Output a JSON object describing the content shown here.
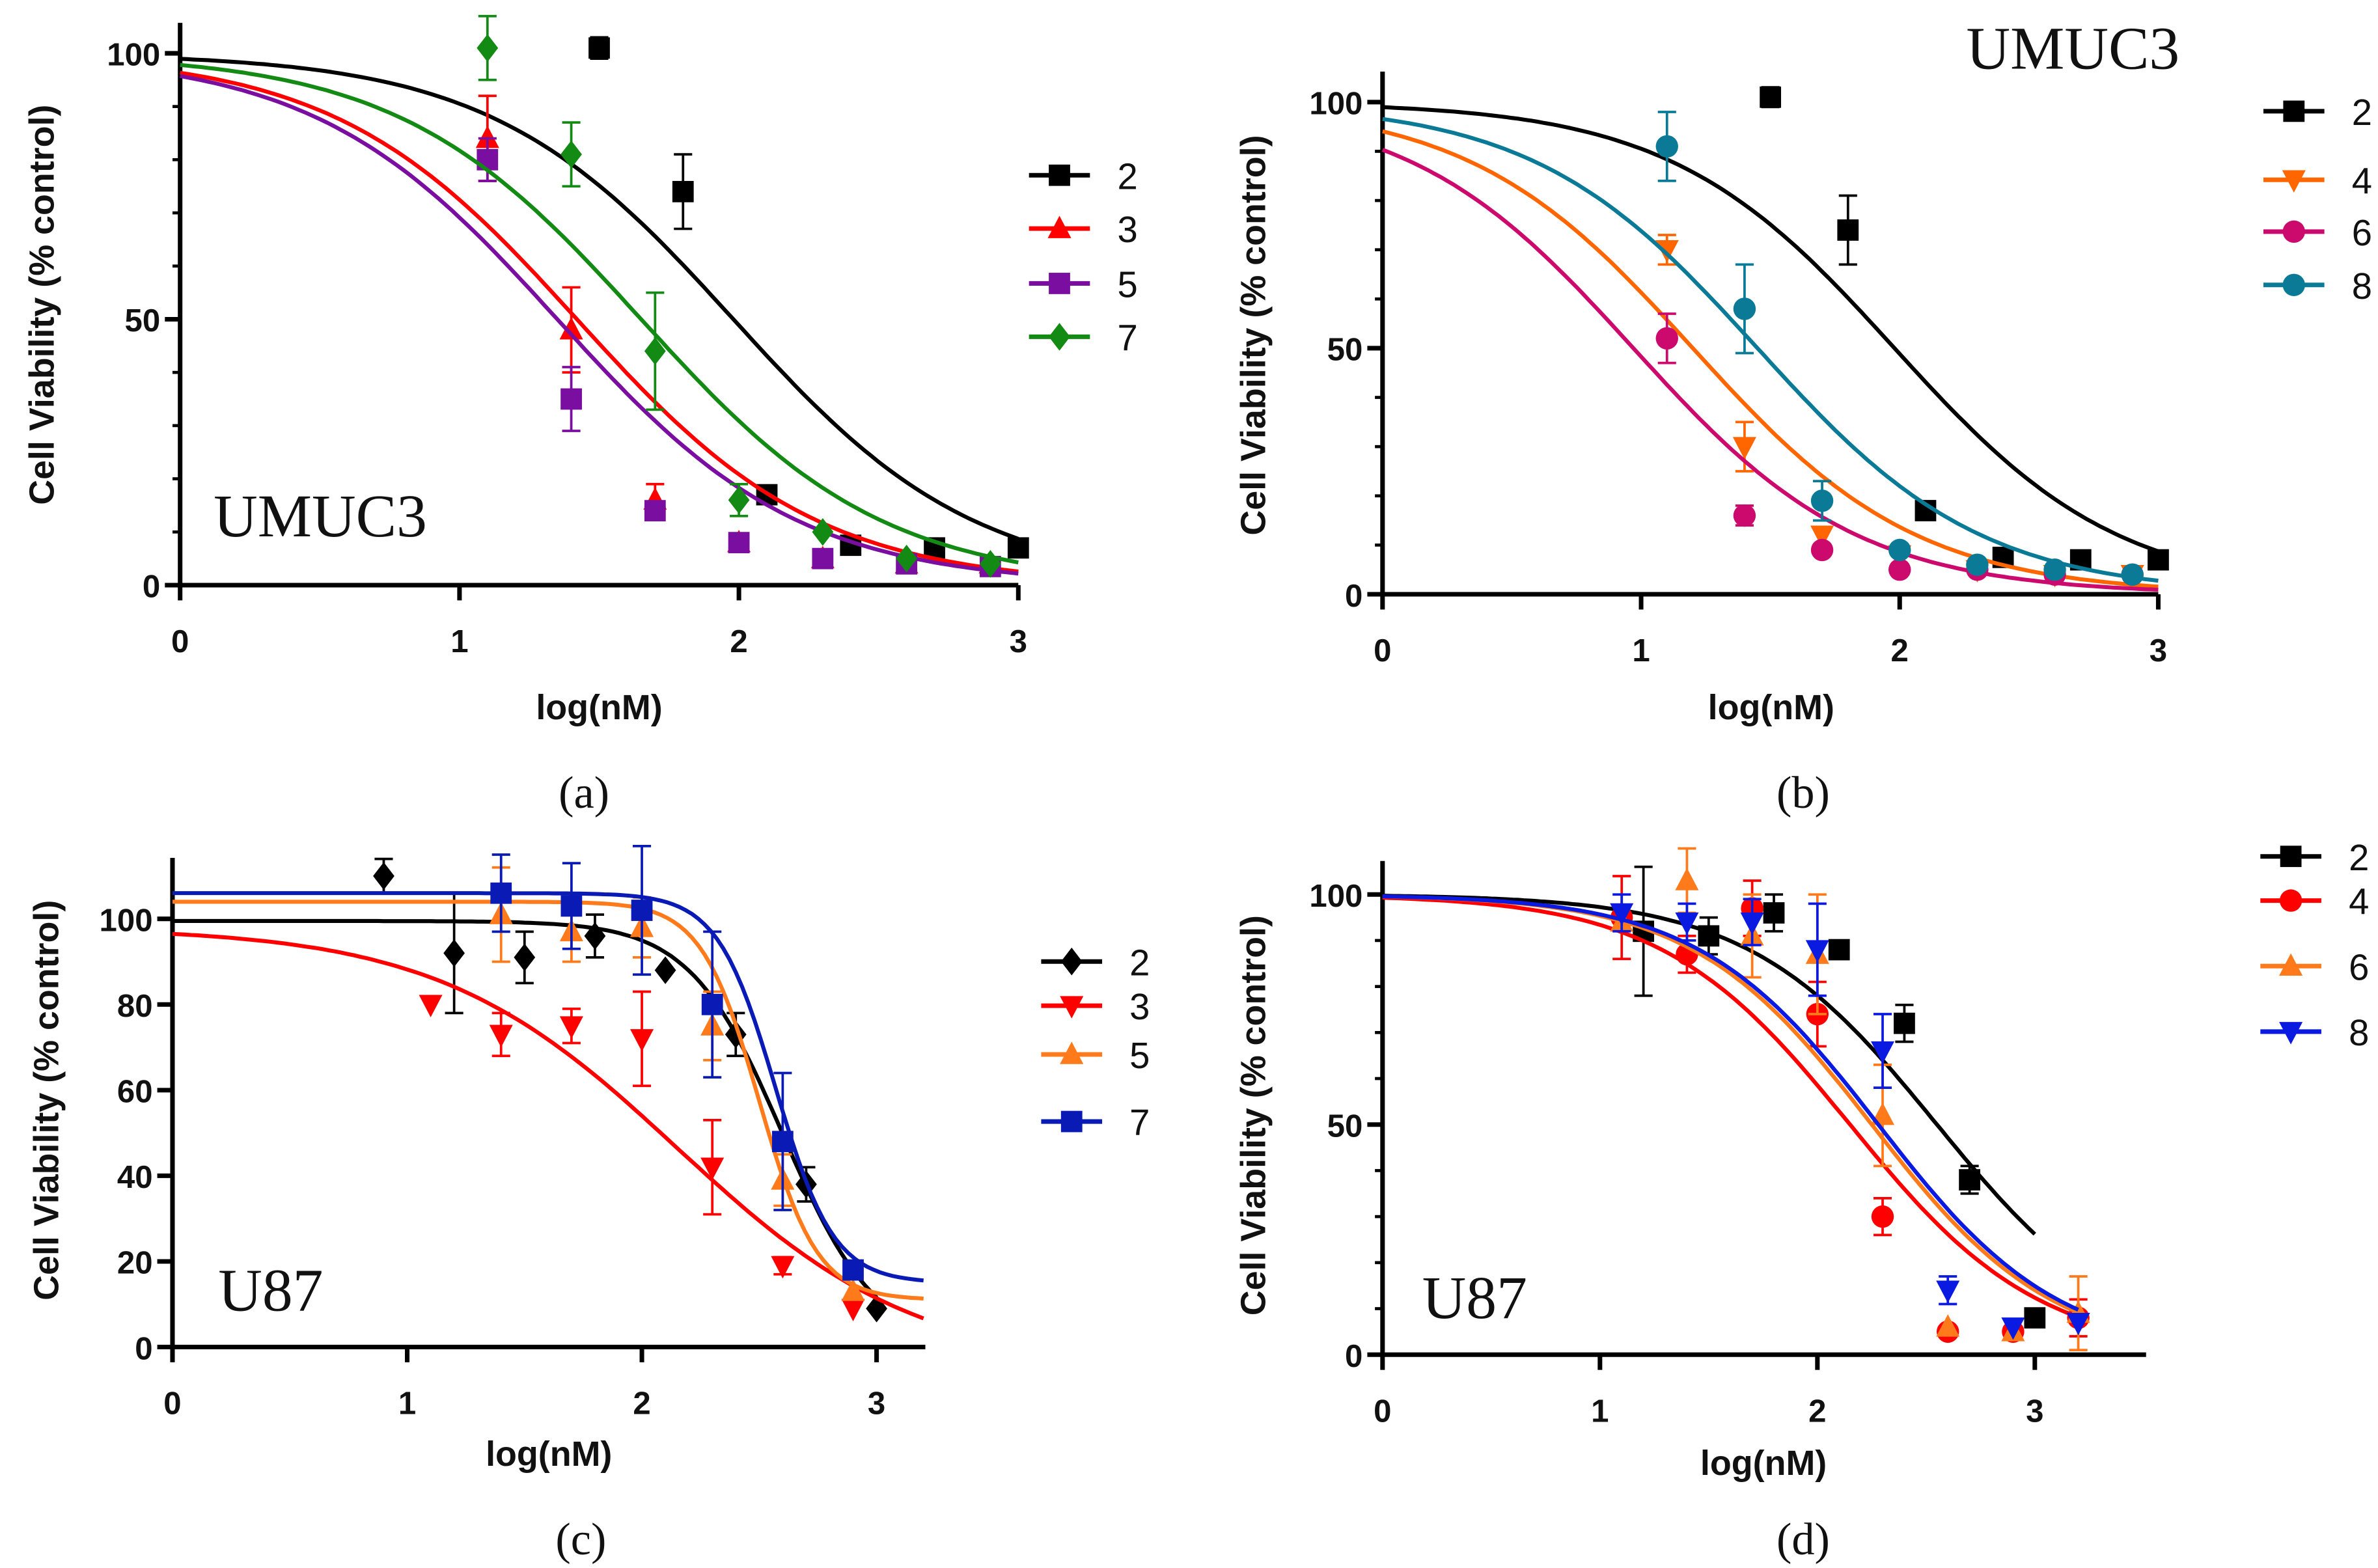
{
  "chart_data": [
    {
      "panel_label": "(a)",
      "type": "scatter",
      "cell_line": "UMUC3",
      "xlabel": "log(nM)",
      "ylabel": "Cell Viability (% control)",
      "xlim": [
        0,
        3
      ],
      "ylim": [
        0,
        105
      ],
      "xticks": [
        "0",
        "1",
        "2",
        "3"
      ],
      "yticks": [
        "0",
        "50",
        "100"
      ],
      "legend_placement": "right",
      "series": [
        {
          "name": "2",
          "color": "#000000",
          "marker": "square",
          "fit": {
            "top": 100,
            "bottom": 0,
            "logIC50": 1.98,
            "hill": 1.0
          },
          "points": [
            [
              1.5,
              101,
              2
            ],
            [
              1.8,
              74,
              7
            ],
            [
              2.1,
              17,
              0
            ],
            [
              2.4,
              7.5,
              0
            ],
            [
              2.7,
              7,
              0
            ],
            [
              3.0,
              7,
              0
            ]
          ]
        },
        {
          "name": "3",
          "color": "#ff0000",
          "marker": "triangle-up",
          "fit": {
            "top": 100,
            "bottom": 0,
            "logIC50": 1.42,
            "hill": 1.0
          },
          "points": [
            [
              1.1,
              84,
              8
            ],
            [
              1.4,
              48,
              8
            ],
            [
              1.7,
              16,
              3
            ],
            [
              2.0,
              8,
              0
            ],
            [
              2.3,
              5,
              0
            ],
            [
              2.6,
              4,
              0
            ],
            [
              2.9,
              4,
              0
            ]
          ]
        },
        {
          "name": "5",
          "color": "#7a0ea0",
          "marker": "square",
          "fit": {
            "top": 100,
            "bottom": 0,
            "logIC50": 1.35,
            "hill": 1.0
          },
          "points": [
            [
              1.1,
              80,
              4
            ],
            [
              1.4,
              35,
              6
            ],
            [
              1.7,
              14,
              0
            ],
            [
              2.0,
              8,
              0
            ],
            [
              2.3,
              5,
              0
            ],
            [
              2.6,
              4,
              0
            ],
            [
              2.9,
              3.5,
              0
            ]
          ]
        },
        {
          "name": "7",
          "color": "#138a13",
          "marker": "diamond",
          "fit": {
            "top": 100,
            "bottom": 0,
            "logIC50": 1.65,
            "hill": 1.0
          },
          "points": [
            [
              1.1,
              101,
              6
            ],
            [
              1.4,
              81,
              6
            ],
            [
              1.7,
              44,
              11
            ],
            [
              2.0,
              16,
              3
            ],
            [
              2.3,
              10,
              0
            ],
            [
              2.6,
              5,
              0
            ],
            [
              2.9,
              4,
              0
            ]
          ]
        }
      ]
    },
    {
      "panel_label": "(b)",
      "type": "scatter",
      "cell_line": "UMUC3",
      "xlabel": "log(nM)",
      "ylabel": "Cell Viability (% control)",
      "xlim": [
        0,
        3
      ],
      "ylim": [
        0,
        105
      ],
      "xticks": [
        "0",
        "1",
        "2",
        "3"
      ],
      "yticks": [
        "0",
        "50",
        "100"
      ],
      "legend_placement": "right",
      "series": [
        {
          "name": "2",
          "color": "#000000",
          "marker": "square",
          "fit": {
            "top": 100,
            "bottom": 0,
            "logIC50": 1.98,
            "hill": 1.0
          },
          "points": [
            [
              1.5,
              101,
              2
            ],
            [
              1.8,
              74,
              7
            ],
            [
              2.1,
              17,
              0
            ],
            [
              2.4,
              7.5,
              0
            ],
            [
              2.7,
              7,
              0
            ],
            [
              3.0,
              7,
              0
            ]
          ]
        },
        {
          "name": "4",
          "color": "#ff6600",
          "marker": "triangle-down",
          "fit": {
            "top": 100,
            "bottom": 0,
            "logIC50": 1.2,
            "hill": 1.0
          },
          "points": [
            [
              1.1,
              70,
              3
            ],
            [
              1.4,
              30,
              5
            ],
            [
              1.7,
              12,
              0
            ],
            [
              2.0,
              8,
              0
            ],
            [
              2.3,
              5,
              0
            ],
            [
              2.6,
              4,
              0
            ],
            [
              2.9,
              4,
              0
            ]
          ]
        },
        {
          "name": "6",
          "color": "#cc0a6e",
          "marker": "circle",
          "fit": {
            "top": 100,
            "bottom": 0,
            "logIC50": 0.97,
            "hill": 1.0
          },
          "points": [
            [
              1.1,
              52,
              5
            ],
            [
              1.4,
              16,
              2
            ],
            [
              1.7,
              9,
              0
            ],
            [
              2.0,
              5,
              0
            ],
            [
              2.3,
              5,
              0
            ],
            [
              2.6,
              4,
              0
            ],
            [
              2.9,
              4,
              0
            ]
          ]
        },
        {
          "name": "8",
          "color": "#0a7a96",
          "marker": "circle",
          "fit": {
            "top": 100,
            "bottom": 0,
            "logIC50": 1.45,
            "hill": 1.0
          },
          "points": [
            [
              1.1,
              91,
              7
            ],
            [
              1.4,
              58,
              9
            ],
            [
              1.7,
              19,
              4
            ],
            [
              2.0,
              9,
              0
            ],
            [
              2.3,
              6,
              0
            ],
            [
              2.6,
              5,
              0
            ],
            [
              2.9,
              4,
              0
            ]
          ]
        }
      ]
    },
    {
      "panel_label": "(c)",
      "type": "scatter",
      "cell_line": "U87",
      "xlabel": "log(nM)",
      "ylabel": "Cell Viability (% control)",
      "xlim": [
        0,
        3.2
      ],
      "ylim": [
        0,
        115
      ],
      "xticks": [
        "0",
        "1",
        "2",
        "3"
      ],
      "yticks": [
        "0",
        "20",
        "40",
        "60",
        "80",
        "100"
      ],
      "legend_placement": "right",
      "series": [
        {
          "name": "2",
          "color": "#000000",
          "marker": "diamond",
          "fit": {
            "top": 99.5,
            "bottom": 0,
            "logIC50": 2.6,
            "hill": 2.2,
            "xmax": 3.0
          },
          "points": [
            [
              0.9,
              110,
              4
            ],
            [
              1.2,
              92,
              14
            ],
            [
              1.5,
              91,
              6
            ],
            [
              1.8,
              96,
              5
            ],
            [
              2.1,
              88,
              0
            ],
            [
              2.4,
              73,
              5
            ],
            [
              2.7,
              38,
              4
            ],
            [
              3.0,
              9,
              0
            ]
          ]
        },
        {
          "name": "3",
          "color": "#ff0000",
          "marker": "triangle-down",
          "fit": {
            "top": 98,
            "bottom": -5,
            "logIC50": 2.15,
            "hill": 0.85
          },
          "points": [
            [
              1.1,
              80,
              0
            ],
            [
              1.4,
              73,
              5
            ],
            [
              1.7,
              75,
              4
            ],
            [
              2.0,
              72,
              11
            ],
            [
              2.3,
              42,
              11
            ],
            [
              2.6,
              19,
              2
            ],
            [
              2.9,
              9,
              0
            ]
          ]
        },
        {
          "name": "5",
          "color": "#ff7a1a",
          "marker": "triangle-up",
          "fit": {
            "top": 104,
            "bottom": 11,
            "logIC50": 2.5,
            "hill": 3.5
          },
          "points": [
            [
              1.4,
              101,
              11
            ],
            [
              1.7,
              97,
              7
            ],
            [
              2.0,
              98,
              7
            ],
            [
              2.3,
              75,
              8
            ],
            [
              2.6,
              39,
              6
            ],
            [
              2.9,
              13,
              0
            ]
          ]
        },
        {
          "name": "7",
          "color": "#0a1ab4",
          "marker": "square",
          "fit": {
            "top": 106,
            "bottom": 15,
            "logIC50": 2.57,
            "hill": 3.5
          },
          "points": [
            [
              1.4,
              106,
              9
            ],
            [
              1.7,
              103,
              10
            ],
            [
              2.0,
              102,
              15
            ],
            [
              2.3,
              80,
              17
            ],
            [
              2.6,
              48,
              16
            ],
            [
              2.9,
              18,
              0
            ]
          ]
        }
      ]
    },
    {
      "panel_label": "(d)",
      "type": "scatter",
      "cell_line": "U87",
      "xlabel": "log(nM)",
      "ylabel": "Cell Viability (% control)",
      "xlim": [
        0,
        3.5
      ],
      "ylim": [
        0,
        105
      ],
      "xticks": [
        "0",
        "1",
        "2",
        "3"
      ],
      "yticks": [
        "0",
        "50",
        "100"
      ],
      "legend_placement": "top-right",
      "series": [
        {
          "name": "2",
          "color": "#000000",
          "marker": "square",
          "fit": {
            "top": 100,
            "bottom": 0,
            "logIC50": 2.55,
            "hill": 1.0,
            "xmax": 3.0
          },
          "points": [
            [
              1.2,
              92,
              14
            ],
            [
              1.5,
              91,
              4
            ],
            [
              1.8,
              96,
              4
            ],
            [
              2.1,
              88,
              0
            ],
            [
              2.4,
              72,
              4
            ],
            [
              2.7,
              38,
              3
            ],
            [
              3.0,
              8,
              0
            ]
          ]
        },
        {
          "name": "4",
          "color": "#ff0000",
          "marker": "circle",
          "fit": {
            "top": 100,
            "bottom": 0,
            "logIC50": 2.15,
            "hill": 1.0,
            "xmax": 3.2
          },
          "points": [
            [
              1.1,
              95,
              9
            ],
            [
              1.4,
              87,
              4
            ],
            [
              1.7,
              97,
              6
            ],
            [
              2.0,
              74,
              7
            ],
            [
              2.3,
              30,
              4
            ],
            [
              2.6,
              5,
              0
            ],
            [
              2.9,
              5,
              0
            ],
            [
              3.2,
              8,
              4
            ]
          ]
        },
        {
          "name": "6",
          "color": "#ff7a1a",
          "marker": "triangle-up",
          "fit": {
            "top": 100,
            "bottom": 0,
            "logIC50": 2.25,
            "hill": 1.05,
            "xmax": 3.2
          },
          "points": [
            [
              1.1,
              94,
              0
            ],
            [
              1.4,
              103,
              7
            ],
            [
              1.7,
              91,
              9
            ],
            [
              2.0,
              87,
              13
            ],
            [
              2.3,
              52,
              11
            ],
            [
              2.6,
              6,
              0
            ],
            [
              2.9,
              5,
              0
            ],
            [
              3.2,
              9,
              8
            ]
          ]
        },
        {
          "name": "8",
          "color": "#0a1ae0",
          "marker": "triangle-down",
          "fit": {
            "top": 100,
            "bottom": 0,
            "logIC50": 2.28,
            "hill": 1.05,
            "xmax": 3.2
          },
          "points": [
            [
              1.1,
              96,
              4
            ],
            [
              1.4,
              94,
              4
            ],
            [
              1.7,
              94,
              5
            ],
            [
              2.0,
              88,
              10
            ],
            [
              2.3,
              66,
              8
            ],
            [
              2.6,
              14,
              3
            ],
            [
              2.9,
              6,
              0
            ],
            [
              3.2,
              7,
              0
            ]
          ]
        }
      ]
    }
  ]
}
